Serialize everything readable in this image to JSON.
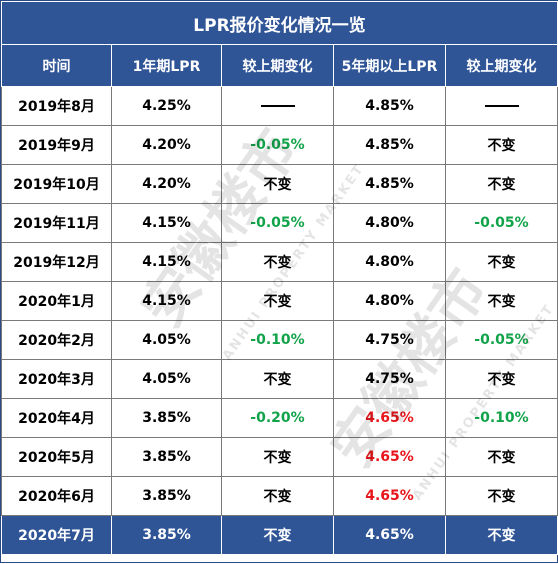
{
  "title": "LPR报价变化情况一览",
  "headers": [
    "时间",
    "1年期LPR",
    "较上期变化",
    "5年期以上LPR",
    "较上期变化"
  ],
  "rows": [
    {
      "date": "2019年8月",
      "lpr1": "4.25%",
      "chg1": "——",
      "lpr5": "4.85%",
      "chg5": "——"
    },
    {
      "date": "2019年9月",
      "lpr1": "4.20%",
      "chg1": "-0.05%",
      "lpr5": "4.85%",
      "chg5": "不变"
    },
    {
      "date": "2019年10月",
      "lpr1": "4.20%",
      "chg1": "不变",
      "lpr5": "4.85%",
      "chg5": "不变"
    },
    {
      "date": "2019年11月",
      "lpr1": "4.15%",
      "chg1": "-0.05%",
      "lpr5": "4.80%",
      "chg5": "-0.05%"
    },
    {
      "date": "2019年12月",
      "lpr1": "4.15%",
      "chg1": "不变",
      "lpr5": "4.80%",
      "chg5": "不变"
    },
    {
      "date": "2020年1月",
      "lpr1": "4.15%",
      "chg1": "不变",
      "lpr5": "4.80%",
      "chg5": "不变"
    },
    {
      "date": "2020年2月",
      "lpr1": "4.05%",
      "chg1": "-0.10%",
      "lpr5": "4.75%",
      "chg5": "-0.05%"
    },
    {
      "date": "2020年3月",
      "lpr1": "4.05%",
      "chg1": "不变",
      "lpr5": "4.75%",
      "chg5": "不变"
    },
    {
      "date": "2020年4月",
      "lpr1": "3.85%",
      "chg1": "-0.20%",
      "lpr5": "4.65%",
      "chg5": "-0.10%"
    },
    {
      "date": "2020年5月",
      "lpr1": "3.85%",
      "chg1": "不变",
      "lpr5": "4.65%",
      "chg5": "不变"
    },
    {
      "date": "2020年6月",
      "lpr1": "3.85%",
      "chg1": "不变",
      "lpr5": "4.65%",
      "chg5": "不变"
    },
    {
      "date": "2020年7月",
      "lpr1": "3.85%",
      "chg1": "不变",
      "lpr5": "4.65%",
      "chg5": "不变"
    }
  ],
  "watermark": {
    "text": "安徽楼市",
    "subtext": "ANHUI PROPERTY MARKET"
  },
  "colors": {
    "header_bg": "#2f5597",
    "decrease": "#12a34a",
    "highlight_rate": "#e8161c"
  },
  "highlight_rate_value": "4.65%"
}
